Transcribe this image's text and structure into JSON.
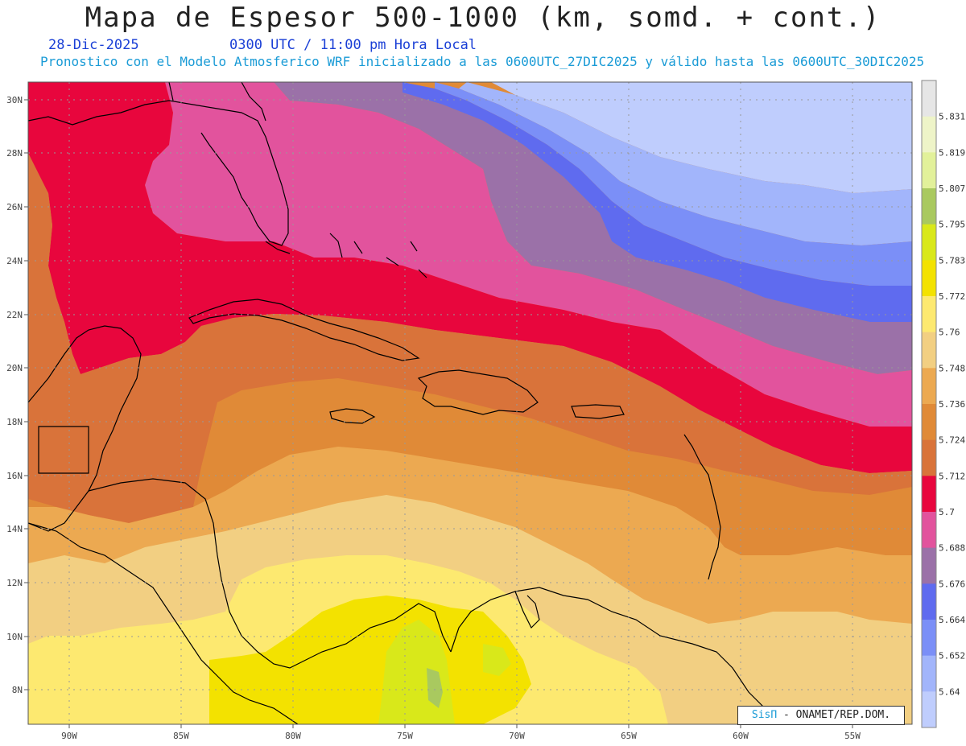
{
  "header": {
    "title": "Mapa de Espesor 500-1000 (km, somd. + cont.)",
    "date": "28-Dic-2025",
    "time": "0300 UTC / 11:00 pm Hora Local",
    "subtitle": "Pronostico con el Modelo Atmosferico WRF inicializado a las 0600UTC_27DIC2025 y válido hasta las  0600UTC_30DIC2025"
  },
  "axes": {
    "lat_labels": [
      "30N",
      "28N",
      "26N",
      "24N",
      "22N",
      "20N",
      "18N",
      "16N",
      "14N",
      "12N",
      "10N",
      "8N"
    ],
    "lon_labels": [
      "90W",
      "85W",
      "80W",
      "75W",
      "70W",
      "65W",
      "60W",
      "55W"
    ]
  },
  "colorbar": {
    "labels": [
      "5.831",
      "5.819",
      "5.807",
      "5.795",
      "5.783",
      "5.772",
      "5.76",
      "5.748",
      "5.736",
      "5.724",
      "5.712",
      "5.7",
      "5.688",
      "5.676",
      "5.664",
      "5.652",
      "5.64"
    ],
    "colors": [
      "#e6e6e6",
      "#eef4c8",
      "#e2f19a",
      "#a9c95f",
      "#d9e81a",
      "#f3e200",
      "#fde970",
      "#f2cf82",
      "#eca951",
      "#e08a37",
      "#d9733a",
      "#e8063d",
      "#e2539d",
      "#9b71a8",
      "#5f6bef",
      "#7b8ff7",
      "#a2b5fb",
      "#bfcdfd"
    ]
  },
  "credit": {
    "brand": "SisΠ",
    "text": " - ONAMET/REP.DOM."
  }
}
